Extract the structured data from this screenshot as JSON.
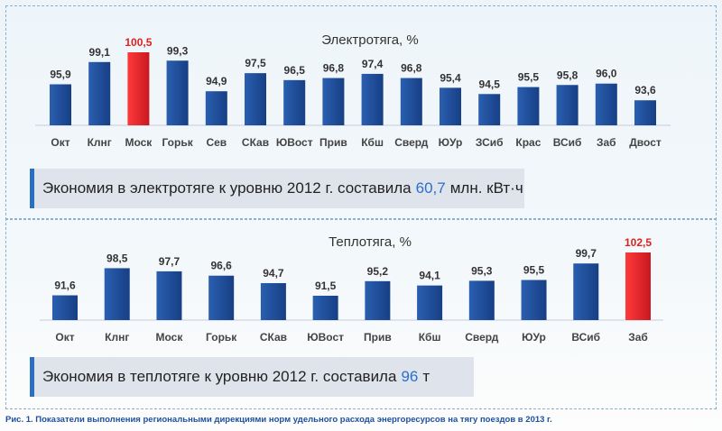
{
  "chart_data": [
    {
      "type": "bar",
      "title": "Электротяга, %",
      "categories": [
        "Окт",
        "Клнг",
        "Моск",
        "Горьк",
        "Сев",
        "СКав",
        "ЮВост",
        "Прив",
        "Кбш",
        "Сверд",
        "ЮУр",
        "ЗСиб",
        "Крас",
        "ВСиб",
        "Заб",
        "Двост"
      ],
      "values": [
        95.9,
        99.1,
        100.5,
        99.3,
        94.9,
        97.5,
        96.5,
        96.8,
        97.4,
        96.8,
        95.4,
        94.5,
        95.5,
        95.8,
        96.0,
        93.6
      ],
      "labels": [
        "95,9",
        "99,1",
        "100,5",
        "99,3",
        "94,9",
        "97,5",
        "96,5",
        "96,8",
        "97,4",
        "96,8",
        "95,4",
        "94,5",
        "95,5",
        "95,8",
        "96,0",
        "93,6"
      ],
      "highlight": [
        2
      ],
      "ylim": [
        90,
        101
      ],
      "xlabel": "",
      "ylabel": ""
    },
    {
      "type": "bar",
      "title": "Теплотяга, %",
      "categories": [
        "Окт",
        "Клнг",
        "Моск",
        "Горьк",
        "СКав",
        "ЮВост",
        "Прив",
        "Кбш",
        "Сверд",
        "ЮУр",
        "ВСиб",
        "Заб"
      ],
      "values": [
        91.6,
        98.5,
        97.7,
        96.6,
        94.7,
        91.5,
        95.2,
        94.1,
        95.3,
        95.5,
        99.7,
        102.5
      ],
      "labels": [
        "91,6",
        "98,5",
        "97,7",
        "96,6",
        "94,7",
        "91,5",
        "95,2",
        "94,1",
        "95,3",
        "95,5",
        "99,7",
        "102,5"
      ],
      "highlight": [
        11
      ],
      "ylim": [
        85.3,
        103
      ],
      "xlabel": "",
      "ylabel": ""
    }
  ],
  "notes": [
    {
      "pre": "Экономия в электротяге к уровню 2012 г. составила",
      "value": "60,7",
      "unit": "млн. кВт·ч"
    },
    {
      "pre": "Экономия в теплотяге к уровню 2012 г. составила",
      "value": "96",
      "unit": "т"
    }
  ],
  "caption": "Рис. 1. Показатели выполнения региональными дирекциями норм удельного расхода энергоресурсов на тягу поездов в 2013 г.",
  "colors": {
    "bar": "#1f4e9c",
    "highlight": "#e8202a",
    "highlight_text": "#e02020",
    "accent": "#2a70c8"
  }
}
